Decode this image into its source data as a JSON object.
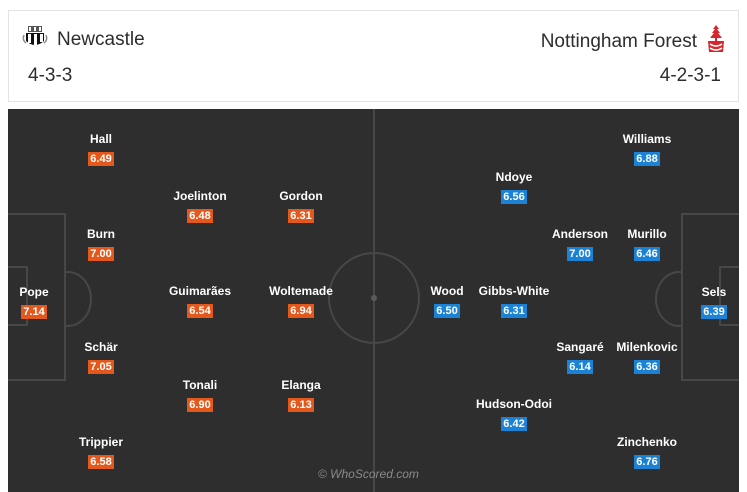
{
  "home": {
    "name": "Newcastle",
    "formation": "4-3-3",
    "badge_icon": "newcastle-crest-icon",
    "rating_color": "#e4581c",
    "players": [
      {
        "name": "Pope",
        "rating": "7.14"
      },
      {
        "name": "Hall",
        "rating": "6.49"
      },
      {
        "name": "Burn",
        "rating": "7.00"
      },
      {
        "name": "Schär",
        "rating": "7.05"
      },
      {
        "name": "Trippier",
        "rating": "6.58"
      },
      {
        "name": "Joelinton",
        "rating": "6.48"
      },
      {
        "name": "Guimarães",
        "rating": "6.54"
      },
      {
        "name": "Tonali",
        "rating": "6.90"
      },
      {
        "name": "Gordon",
        "rating": "6.31"
      },
      {
        "name": "Woltemade",
        "rating": "6.94"
      },
      {
        "name": "Elanga",
        "rating": "6.13"
      }
    ]
  },
  "away": {
    "name": "Nottingham Forest",
    "formation": "4-2-3-1",
    "badge_icon": "nottingham-forest-crest-icon",
    "rating_color": "#1c82d6",
    "players": [
      {
        "name": "Sels",
        "rating": "6.39"
      },
      {
        "name": "Williams",
        "rating": "6.88"
      },
      {
        "name": "Murillo",
        "rating": "6.46"
      },
      {
        "name": "Milenkovic",
        "rating": "6.36"
      },
      {
        "name": "Zinchenko",
        "rating": "6.76"
      },
      {
        "name": "Anderson",
        "rating": "7.00"
      },
      {
        "name": "Sangaré",
        "rating": "6.14"
      },
      {
        "name": "Ndoye",
        "rating": "6.56"
      },
      {
        "name": "Gibbs-White",
        "rating": "6.31"
      },
      {
        "name": "Hudson-Odoi",
        "rating": "6.42"
      },
      {
        "name": "Wood",
        "rating": "6.50"
      }
    ]
  },
  "watermark": "© WhoScored.com"
}
